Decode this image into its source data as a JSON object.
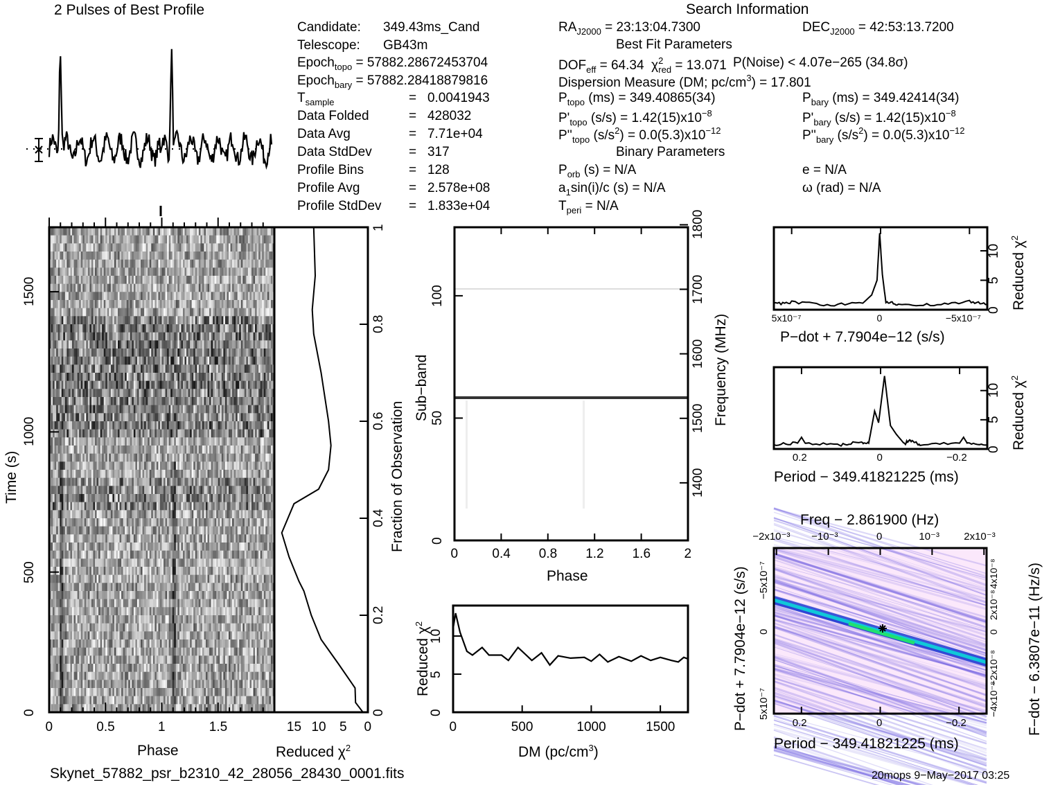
{
  "profile": {
    "title": "2 Pulses of Best Profile"
  },
  "info_left": [
    {
      "label": "Candidate:",
      "value": "349.43ms_Cand"
    },
    {
      "label": "Telescope:",
      "value": "GB43m"
    },
    {
      "label": "Epoch",
      "sub": "topo",
      "value": "= 57882.28672453704"
    },
    {
      "label": "Epoch",
      "sub": "bary",
      "value": "= 57882.28418879816"
    },
    {
      "label": "T",
      "sub": "sample",
      "value": "0.0041943"
    },
    {
      "label": "Data Folded",
      "value": "428032"
    },
    {
      "label": "Data Avg",
      "value": "7.71e+04"
    },
    {
      "label": "Data StdDev",
      "value": "317"
    },
    {
      "label": "Profile Bins",
      "value": "128"
    },
    {
      "label": "Profile Avg",
      "value": "2.578e+08"
    },
    {
      "label": "Profile StdDev",
      "value": "1.833e+04"
    }
  ],
  "search_info": {
    "title": "Search Information",
    "ra": "= 23:13:04.7300",
    "dec": "= 42:53:13.7200",
    "best_fit_title": "Best Fit Parameters",
    "dof": "= 64.34",
    "chi2red": "= 13.071",
    "pnoise": "P(Noise) < 4.07e−265   (34.8σ)",
    "dm": "Dispersion Measure (DM; pc/cm",
    "dm_value": ") = 17.801",
    "ptopo": "(ms) =  349.40865(34)",
    "pbary": "(ms) =  349.42414(34)",
    "pdtopo": "(s/s) =  1.42(15)x10",
    "pdbary": "(s/s) =  1.42(15)x10",
    "pd_exp": "−8",
    "pddtopo": "(s/s",
    "pddtopo_val": ") = 0.0(5.3)x10",
    "pddbary": "(s/s",
    "pddbary_val": ") = 0.0(5.3)x10",
    "pdd_exp": "−12",
    "binary_title": "Binary Parameters",
    "porb": "(s) = N/A",
    "e": "e = N/A",
    "a1": "sin(i)/c (s) = N/A",
    "omega": "ω (rad) = N/A",
    "tperi": "= N/A"
  },
  "footer": {
    "filename": "Skynet_57882_psr_b2310_42_28056_28430_0001.fits",
    "stamp": "20mops   9−May−2017 03:25"
  },
  "chart_data": [
    {
      "type": "line",
      "id": "profile",
      "title": "2 Pulses of Best Profile",
      "x_range": [
        0,
        2
      ],
      "peaks_at_phase": [
        0.1,
        1.1
      ],
      "baseline_marker": "dotted mean with error bar"
    },
    {
      "type": "heatmap",
      "id": "time-phase",
      "xlabel": "Phase",
      "ylabel": "Time (s)",
      "xlim": [
        0,
        2
      ],
      "ylim": [
        0,
        1700
      ],
      "xticks": [
        "0",
        "0.5",
        "1",
        "1.5"
      ],
      "yticks": [
        "0",
        "500",
        "1000",
        "1500"
      ]
    },
    {
      "type": "line",
      "id": "chi2-vs-time",
      "xlabel": "Reduced χ²",
      "ylabel": "Fraction of Observation",
      "xlim": [
        20,
        0
      ],
      "ylim": [
        0,
        1
      ],
      "xticks": [
        "15",
        "10",
        "5",
        "0"
      ],
      "yticks": [
        "0",
        "0.2",
        "0.4",
        "0.6",
        "0.8",
        "1"
      ],
      "points": [
        [
          1,
          0
        ],
        [
          2.5,
          0.02
        ],
        [
          2.6,
          0.05
        ],
        [
          6,
          0.1
        ],
        [
          9.5,
          0.15
        ],
        [
          11.5,
          0.2
        ],
        [
          13,
          0.25
        ],
        [
          14,
          0.27
        ],
        [
          16,
          0.32
        ],
        [
          17.5,
          0.37
        ],
        [
          15,
          0.43
        ],
        [
          10,
          0.46
        ],
        [
          8,
          0.5
        ],
        [
          7.5,
          0.55
        ],
        [
          8,
          0.6
        ],
        [
          9.5,
          0.7
        ],
        [
          11,
          0.78
        ],
        [
          11.3,
          0.83
        ],
        [
          10.7,
          0.9
        ],
        [
          11,
          1.0
        ]
      ]
    },
    {
      "type": "heatmap",
      "id": "subband-phase",
      "xlabel": "Phase",
      "ylabel": "Sub−band",
      "y2label": "Frequency (MHz)",
      "xlim": [
        0,
        2
      ],
      "ylim": [
        0,
        128
      ],
      "y2lim": [
        1300,
        1800
      ],
      "xticks": [
        "0",
        "0.4",
        "0.8",
        "1.2",
        "1.6",
        "2"
      ],
      "yticks": [
        "0",
        "50",
        "100"
      ],
      "y2ticks": [
        "1400",
        "1500",
        "1600",
        "1700",
        "1800"
      ]
    },
    {
      "type": "line",
      "id": "chi2-vs-dm",
      "xlabel": "DM (pc/cm³)",
      "ylabel": "Reduced χ²",
      "xlim": [
        0,
        1700
      ],
      "ylim": [
        0,
        14
      ],
      "xticks": [
        "0",
        "500",
        "1000",
        "1500"
      ],
      "yticks": [
        "0",
        "5",
        "10"
      ],
      "points": [
        [
          0,
          11
        ],
        [
          18,
          13
        ],
        [
          50,
          10.5
        ],
        [
          100,
          8
        ],
        [
          140,
          7.5
        ],
        [
          210,
          8.5
        ],
        [
          260,
          7.5
        ],
        [
          350,
          7.5
        ],
        [
          400,
          6.8
        ],
        [
          470,
          8.5
        ],
        [
          570,
          6.8
        ],
        [
          640,
          7.8
        ],
        [
          700,
          6.2
        ],
        [
          760,
          7.4
        ],
        [
          850,
          7.1
        ],
        [
          950,
          7.2
        ],
        [
          1000,
          6.7
        ],
        [
          1060,
          7.6
        ],
        [
          1120,
          6.6
        ],
        [
          1200,
          7.3
        ],
        [
          1290,
          6.7
        ],
        [
          1360,
          7.4
        ],
        [
          1430,
          6.8
        ],
        [
          1500,
          7.2
        ],
        [
          1580,
          6.8
        ],
        [
          1630,
          6.6
        ],
        [
          1670,
          7.2
        ],
        [
          1700,
          7.0
        ]
      ]
    },
    {
      "type": "line",
      "id": "chi2-vs-pdot",
      "xlabel": "P−dot + 7.7904e−12 (s/s)",
      "ylabel": "Reduced χ²",
      "xlim": [
        6e-07,
        -6e-07
      ],
      "ylim": [
        0,
        14
      ],
      "xticks": [
        "5x10⁻⁷",
        "0",
        "−5x10⁻⁷"
      ],
      "yticks": [
        "0",
        "5",
        "10"
      ],
      "points": [
        [
          6e-07,
          1
        ],
        [
          5e-07,
          1.3
        ],
        [
          3e-07,
          0.8
        ],
        [
          1e-07,
          1.1
        ],
        [
          5e-08,
          2.5
        ],
        [
          2e-08,
          5
        ],
        [
          5e-09,
          13
        ],
        [
          -1e-08,
          6
        ],
        [
          -3e-08,
          1.2
        ],
        [
          -1e-07,
          1
        ],
        [
          -3e-07,
          0.8
        ],
        [
          -5e-07,
          1.4
        ],
        [
          -6e-07,
          0.9
        ]
      ]
    },
    {
      "type": "line",
      "id": "chi2-vs-period",
      "xlabel": "Period − 349.41821225 (ms)",
      "ylabel": "Reduced χ²",
      "xlim": [
        0.27,
        -0.27
      ],
      "ylim": [
        0,
        14
      ],
      "xticks": [
        "0.2",
        "0",
        "−0.2"
      ],
      "yticks": [
        "0",
        "5",
        "10"
      ],
      "points": [
        [
          0.27,
          0.8
        ],
        [
          0.21,
          1
        ],
        [
          0.2,
          2
        ],
        [
          0.19,
          0.9
        ],
        [
          0.1,
          0.7
        ],
        [
          0.05,
          1.2
        ],
        [
          0.03,
          1
        ],
        [
          0.015,
          6.5
        ],
        [
          0.005,
          4.5
        ],
        [
          -0.01,
          12.5
        ],
        [
          -0.025,
          4
        ],
        [
          -0.04,
          2.5
        ],
        [
          -0.06,
          0.9
        ],
        [
          -0.075,
          1.5
        ],
        [
          -0.1,
          0.7
        ],
        [
          -0.2,
          1
        ],
        [
          -0.21,
          2
        ],
        [
          -0.22,
          0.9
        ],
        [
          -0.27,
          0.7
        ]
      ]
    },
    {
      "type": "heatmap",
      "id": "period-pdot",
      "xlabel": "Period − 349.41821225 (ms)",
      "ylabel": "P−dot + 7.7904e−12 (s/s)",
      "x2label": "Freq − 2.861900 (Hz)",
      "y2label": "F−dot − 6.3807e−11 (Hz/s)",
      "xticks": [
        "0.2",
        "0",
        "−0.2"
      ],
      "yticks": [
        "5x10⁻⁷",
        "0",
        "−5x10⁻⁷"
      ],
      "x2ticks": [
        "−2x10⁻³",
        "−10⁻³",
        "0",
        "10⁻³",
        "2x10⁻³"
      ],
      "y2ticks": [
        "−4x10⁻⁸",
        "−2x10⁻⁸",
        "0",
        "2x10⁻⁸",
        "4x10⁻⁸"
      ],
      "colors": {
        "low": "#fbe8fb",
        "mid": "#6a5ae0",
        "ridge": "#1030d0",
        "peak": "#20e070"
      }
    }
  ]
}
